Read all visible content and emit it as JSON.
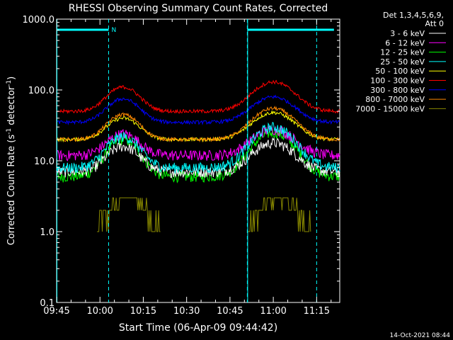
{
  "chart_data": {
    "type": "line",
    "title": "RHESSI Observing Summary Count Rates, Corrected",
    "xlabel": "Start Time (06-Apr-09 09:44:42)",
    "ylabel_main": "Corrected Count Rate (s",
    "ylabel_sup1": "-1",
    "ylabel_mid": " detector",
    "ylabel_sup2": "-1",
    "ylabel_end": ")",
    "yscale": "log",
    "ylim": [
      0.1,
      1000
    ],
    "xlim_minutes": [
      0,
      98
    ],
    "x_ticks": [
      "09:45",
      "10:00",
      "10:15",
      "10:30",
      "10:45",
      "11:00",
      "11:15"
    ],
    "y_ticks": [
      "0.1",
      "1.0",
      "10.0",
      "100.0",
      "1000.0"
    ],
    "legend_header": "Det 1,3,4,5,6,9,",
    "legend_header2": "Att 0",
    "legend_position": "top-right",
    "flag_label": "N",
    "footer_date": "14-Oct-2021 08:44",
    "series": [
      {
        "name": "3 - 6 keV",
        "color": "#ffffff",
        "base": 7,
        "peak1": 16,
        "peak2": 18
      },
      {
        "name": "6 - 12 keV",
        "color": "#ff00ff",
        "base": 12,
        "peak1": 24,
        "peak2": 28
      },
      {
        "name": "12 - 25 keV",
        "color": "#00ff00",
        "base": 6,
        "peak1": 20,
        "peak2": 25
      },
      {
        "name": "25 - 50 keV",
        "color": "#00ffff",
        "base": 8,
        "peak1": 22,
        "peak2": 30
      },
      {
        "name": "50 - 100 keV",
        "color": "#ffff00",
        "base": 20,
        "peak1": 40,
        "peak2": 48
      },
      {
        "name": "100 - 300 keV",
        "color": "#ff0000",
        "base": 50,
        "peak1": 110,
        "peak2": 130
      },
      {
        "name": "300 - 800 keV",
        "color": "#0000ff",
        "base": 35,
        "peak1": 75,
        "peak2": 80
      },
      {
        "name": "800 - 7000 keV",
        "color": "#ff8800",
        "base": 20,
        "peak1": 45,
        "peak2": 55
      },
      {
        "name": "7000 - 15000 keV",
        "color": "#888800",
        "base": 1,
        "peak1": 3,
        "peak2": 3
      }
    ],
    "peak_times_minutes": [
      23,
      75
    ],
    "saa_lines_minutes": [
      18,
      66,
      90
    ],
    "eclipse_flags_minutes": [
      [
        0,
        18
      ],
      [
        66,
        96
      ]
    ]
  }
}
